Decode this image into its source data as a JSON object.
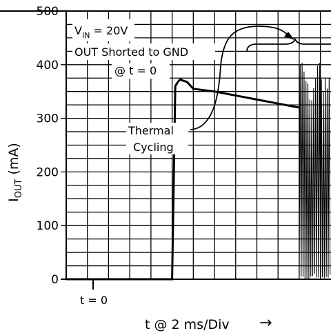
{
  "chart_data": {
    "type": "line",
    "title": "",
    "ylabel_main": "I",
    "ylabel_sub": "OUT",
    "ylabel_unit": "(mA)",
    "xlabel": "t @ 2 ms/Div",
    "xlabel_arrow": "→",
    "x_unit": "ms",
    "yticks": [
      "0",
      "100",
      "200",
      "300",
      "400",
      "500"
    ],
    "ylim": [
      0,
      500
    ],
    "xlim": [
      -5,
      7.5
    ],
    "grid": true,
    "x_marker_label": "t = 0",
    "annotations": {
      "vin_main": "V",
      "vin_sub": "IN",
      "vin_value": " = 20V",
      "shorted": "OUT Shorted to GND",
      "at_t0": "@ t = 0",
      "thermal1": "Thermal",
      "thermal2": "Cycling"
    },
    "series": [
      {
        "x": [
          -5,
          -0.1,
          0,
          0.15,
          0.45,
          0.7,
          1.0,
          2.0,
          4.0,
          6.0
        ],
        "y": [
          0,
          0,
          0,
          360,
          371,
          368,
          355,
          350,
          335,
          320
        ]
      }
    ],
    "thermal_cycling_region": {
      "x_start": 6.0,
      "x_end": 7.5,
      "y_min": 0,
      "y_max": 410
    },
    "colors": {
      "line": "#000000",
      "grid": "#000000",
      "background": "#ffffff"
    }
  }
}
